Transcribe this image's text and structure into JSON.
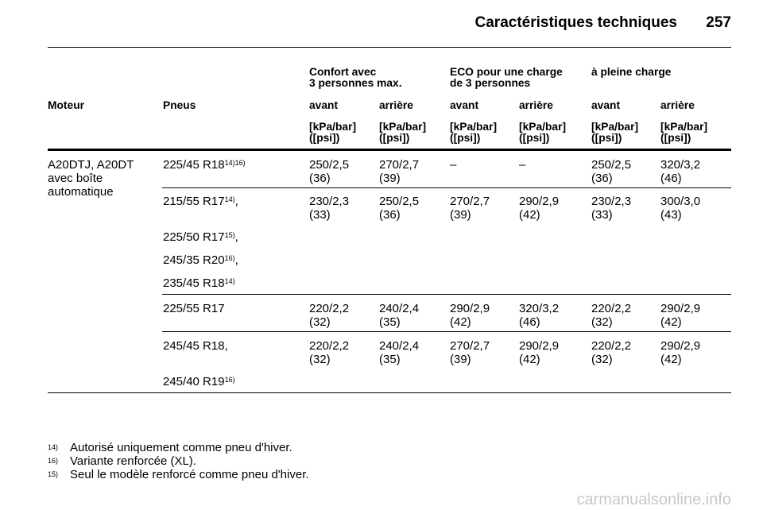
{
  "header": {
    "title": "Caractéristiques techniques",
    "page_number": "257"
  },
  "table": {
    "groups": [
      "Confort avec\n3 personnes max.",
      "ECO pour une charge\nde 3 personnes",
      "à pleine charge"
    ],
    "col_motor": "Moteur",
    "col_tyres": "Pneus",
    "sub_headers": [
      "avant",
      "arrière",
      "avant",
      "arrière",
      "avant",
      "arrière"
    ],
    "unit_line1": "[kPa/bar]",
    "unit_line2": "([psi])",
    "engine": "A20DTJ, A20DT\navec boîte\nautomatique",
    "tyres": [
      {
        "size": "225/45 R18",
        "note": "14)16)",
        "suffix": ""
      },
      {
        "size": "215/55 R17",
        "note": "14)",
        "suffix": ","
      },
      {
        "size": "225/50 R17",
        "note": "15)",
        "suffix": ","
      },
      {
        "size": "245/35 R20",
        "note": "16)",
        "suffix": ","
      },
      {
        "size": "235/45 R18",
        "note": "14)",
        "suffix": ""
      },
      {
        "size": "225/55 R17",
        "note": "",
        "suffix": ""
      },
      {
        "size": "245/45 R18,",
        "note": "",
        "suffix": ""
      },
      {
        "size": "245/40 R19",
        "note": "16)",
        "suffix": ""
      }
    ],
    "values": [
      [
        "250/2,5\n(36)",
        "270/2,7\n(39)",
        "–",
        "–",
        "250/2,5\n(36)",
        "320/3,2\n(46)"
      ],
      [
        "230/2,3\n(33)",
        "250/2,5\n(36)",
        "270/2,7\n(39)",
        "290/2,9\n(42)",
        "230/2,3\n(33)",
        "300/3,0\n(43)"
      ],
      [
        "220/2,2\n(32)",
        "240/2,4\n(35)",
        "290/2,9\n(42)",
        "320/3,2\n(46)",
        "220/2,2\n(32)",
        "290/2,9\n(42)"
      ],
      [
        "220/2,2\n(32)",
        "240/2,4\n(35)",
        "270/2,7\n(39)",
        "290/2,9\n(42)",
        "220/2,2\n(32)",
        "290/2,9\n(42)"
      ]
    ]
  },
  "footnotes": [
    {
      "mark": "14)",
      "text": "Autorisé uniquement comme pneu d'hiver."
    },
    {
      "mark": "16)",
      "text": "Variante renforcée (XL)."
    },
    {
      "mark": "15)",
      "text": "Seul le modèle renforcé comme pneu d'hiver."
    }
  ],
  "watermark": "carmanualsonline.info"
}
